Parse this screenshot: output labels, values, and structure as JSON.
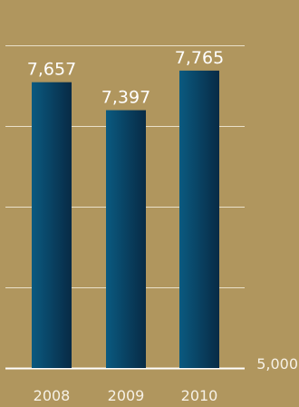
{
  "chart_data": {
    "type": "bar",
    "categories": [
      "2008",
      "2009",
      "2010"
    ],
    "values": [
      7657,
      7397,
      7765
    ],
    "value_labels": [
      "7,657",
      "7,397",
      "7,765"
    ],
    "axis_label": "5,000",
    "ylim": [
      5000,
      8000
    ],
    "grid": true,
    "colors": {
      "background": "#b0965e",
      "bar_light": "#0a5a80",
      "bar_dark": "#082a45",
      "gridline": "#e9e0c9",
      "text": "#ffffff",
      "tick_text": "#f6f1e6"
    }
  }
}
